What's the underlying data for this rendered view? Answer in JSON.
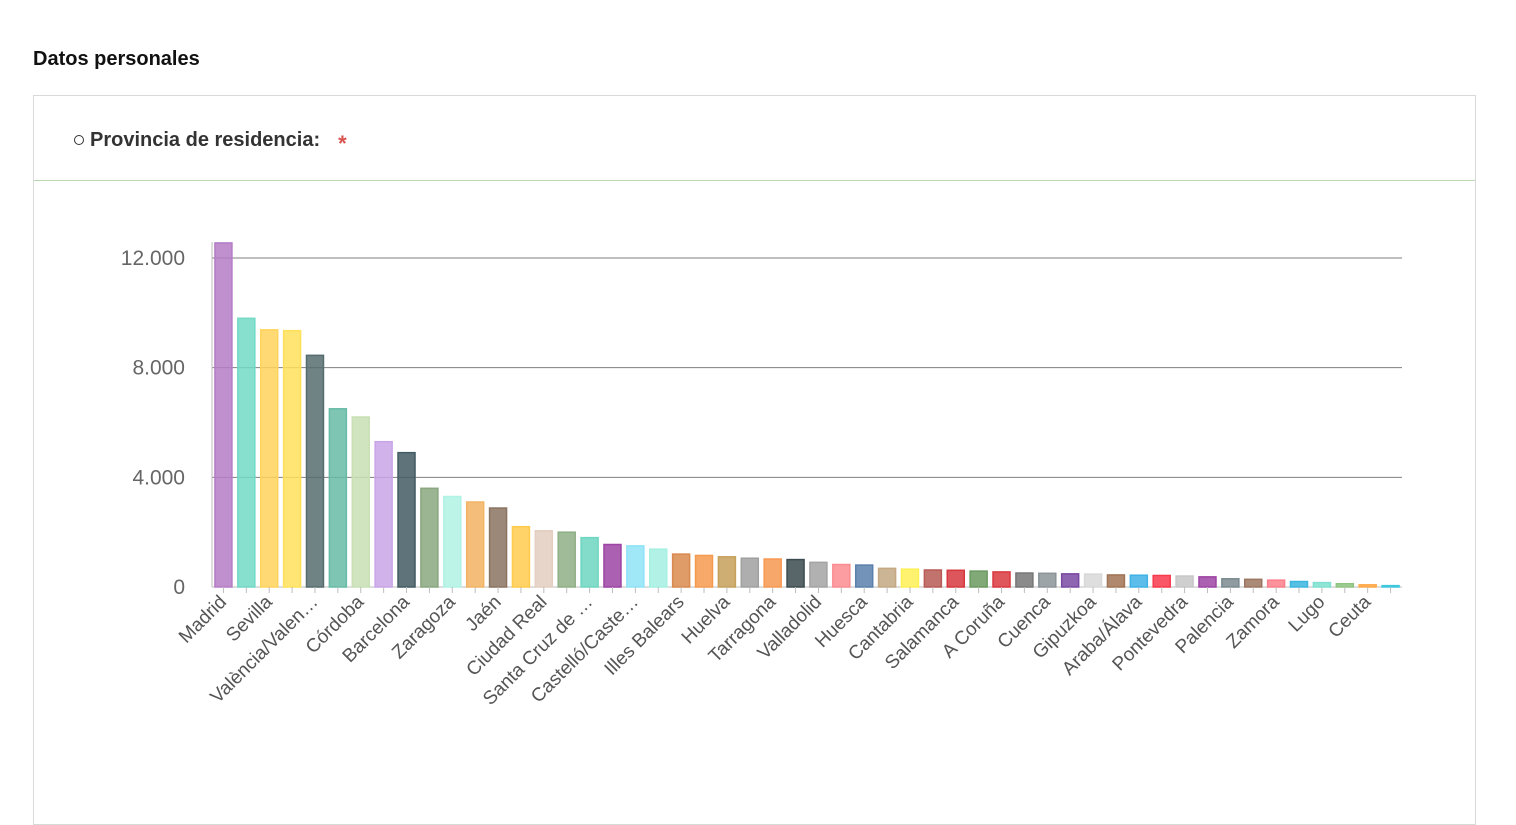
{
  "section": {
    "title": "Datos personales"
  },
  "question": {
    "title": "Provincia de residencia:",
    "required_mark": "*"
  },
  "chart_data": {
    "type": "bar",
    "ylim": [
      0,
      12600
    ],
    "yticks": [
      0,
      4000,
      8000,
      12000
    ],
    "ytick_labels": [
      "0",
      "4.000",
      "8.000",
      "12.000"
    ],
    "grid": true,
    "categories": [
      "Madrid",
      "",
      "Sevilla",
      "",
      "València/Valen…",
      "",
      "Córdoba",
      "",
      "Barcelona",
      "",
      "Zaragoza",
      "",
      "Jaén",
      "",
      "Ciudad Real",
      "",
      "Santa Cruz de …",
      "",
      "Castelló/Caste…",
      "",
      "Illes Balears",
      "",
      "Huelva",
      "",
      "Tarragona",
      "",
      "Valladolid",
      "",
      "Huesca",
      "",
      "Cantabria",
      "",
      "Salamanca",
      "",
      "A Coruña",
      "",
      "Cuenca",
      "",
      "Gipuzkoa",
      "",
      "Araba/Álava",
      "",
      "Pontevedra",
      "",
      "Palencia",
      "",
      "Zamora",
      "",
      "Lugo",
      "",
      "Ceuta",
      ""
    ],
    "values": [
      12550,
      9800,
      9380,
      9350,
      8450,
      6500,
      6200,
      5300,
      4900,
      3600,
      3300,
      3100,
      2880,
      2200,
      2050,
      2000,
      1800,
      1550,
      1500,
      1380,
      1200,
      1150,
      1100,
      1050,
      1020,
      1000,
      900,
      820,
      800,
      680,
      650,
      620,
      610,
      580,
      550,
      510,
      500,
      480,
      470,
      440,
      430,
      420,
      400,
      370,
      300,
      280,
      250,
      200,
      160,
      120,
      80,
      50
    ],
    "colors": [
      "#b57cc6",
      "#72d9c4",
      "#ffd35c",
      "#ffe05a",
      "#566c6f",
      "#67bba7",
      "#c8e0b4",
      "#c9a4e7",
      "#425c63",
      "#8aa77f",
      "#b0f2e4",
      "#f2b363",
      "#8a7361",
      "#ffcb4d",
      "#e3cec0",
      "#8faf86",
      "#6dd6c0",
      "#9c44a3",
      "#8fe3f7",
      "#a5f0e2",
      "#d9894e",
      "#f59a4d",
      "#c6a05a",
      "#a0a0a0",
      "#f79851",
      "#3b4b50",
      "#a3a3a3",
      "#fb8c91",
      "#5b80ac",
      "#c3a883",
      "#fff055",
      "#b85a55",
      "#d6383e",
      "#6a9a5f",
      "#d9383e",
      "#777777",
      "#8b9498",
      "#7a4aa3",
      "#d8d8d8",
      "#a17354",
      "#3fb2e6",
      "#f8394d",
      "#c7c7c7",
      "#9c44a3",
      "#7b8a91",
      "#9c7660",
      "#fb7f8a",
      "#3bb6de",
      "#7ee0d0",
      "#8fc481",
      "#ffa94a",
      "#3ec8de"
    ]
  }
}
